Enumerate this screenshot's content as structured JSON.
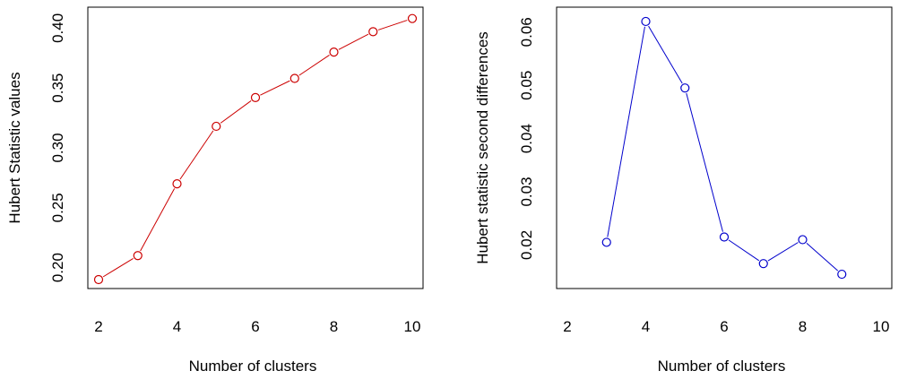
{
  "chart_data": [
    {
      "type": "line",
      "title": "",
      "xlabel": "Number of clusters",
      "ylabel": "Hubert Statistic values",
      "color": "#cc0000",
      "marker": "open-circle",
      "grid": false,
      "legend": "none",
      "xlim": [
        2,
        10
      ],
      "ylim": [
        0.19,
        0.41
      ],
      "xticks": [
        "2",
        "4",
        "6",
        "8",
        "10"
      ],
      "yticks": [
        "0.20",
        "0.25",
        "0.30",
        "0.35",
        "0.40"
      ],
      "x": [
        2,
        3,
        4,
        5,
        6,
        7,
        8,
        9,
        10
      ],
      "y": [
        0.19,
        0.21,
        0.27,
        0.318,
        0.342,
        0.358,
        0.38,
        0.397,
        0.408
      ]
    },
    {
      "type": "line",
      "title": "",
      "xlabel": "Number of clusters",
      "ylabel": "Hubert statistic second differences",
      "color": "#0000cc",
      "marker": "open-circle",
      "grid": false,
      "legend": "none",
      "xlim": [
        2,
        10
      ],
      "ylim": [
        0.0135,
        0.063
      ],
      "xticks": [
        "2",
        "4",
        "6",
        "8",
        "10"
      ],
      "yticks": [
        "0.02",
        "0.03",
        "0.04",
        "0.05",
        "0.06"
      ],
      "x": [
        3,
        4,
        5,
        6,
        7,
        8,
        9
      ],
      "y": [
        0.0205,
        0.062,
        0.0495,
        0.0215,
        0.0165,
        0.021,
        0.0145
      ]
    }
  ]
}
